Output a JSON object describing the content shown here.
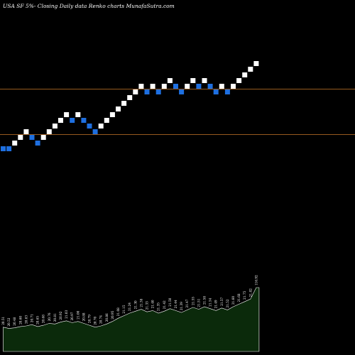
{
  "header": {
    "title": "USA SF 5%-  Closing Daily data  Renko  charts MunafaSutra.com"
  },
  "colors": {
    "background": "#000000",
    "up_brick": "#ffffff",
    "down_brick": "#1e6fe0",
    "level_line": "#c8782a",
    "volume_fill": "#0b2a0b",
    "volume_line": "#ffffff"
  },
  "chart_data": {
    "type": "renko",
    "bricks": [
      {
        "dir": "down",
        "level": 0
      },
      {
        "dir": "down",
        "level": 0
      },
      {
        "dir": "up",
        "level": 1
      },
      {
        "dir": "up",
        "level": 2
      },
      {
        "dir": "up",
        "level": 3
      },
      {
        "dir": "down",
        "level": 2
      },
      {
        "dir": "down",
        "level": 1
      },
      {
        "dir": "up",
        "level": 2
      },
      {
        "dir": "up",
        "level": 3
      },
      {
        "dir": "up",
        "level": 4
      },
      {
        "dir": "up",
        "level": 5
      },
      {
        "dir": "up",
        "level": 6
      },
      {
        "dir": "down",
        "level": 5
      },
      {
        "dir": "up",
        "level": 6
      },
      {
        "dir": "down",
        "level": 5
      },
      {
        "dir": "down",
        "level": 4
      },
      {
        "dir": "down",
        "level": 3
      },
      {
        "dir": "up",
        "level": 4
      },
      {
        "dir": "up",
        "level": 5
      },
      {
        "dir": "up",
        "level": 6
      },
      {
        "dir": "up",
        "level": 7
      },
      {
        "dir": "up",
        "level": 8
      },
      {
        "dir": "up",
        "level": 9
      },
      {
        "dir": "up",
        "level": 10
      },
      {
        "dir": "up",
        "level": 11
      },
      {
        "dir": "down",
        "level": 10
      },
      {
        "dir": "up",
        "level": 11
      },
      {
        "dir": "down",
        "level": 10
      },
      {
        "dir": "up",
        "level": 11
      },
      {
        "dir": "up",
        "level": 12
      },
      {
        "dir": "down",
        "level": 11
      },
      {
        "dir": "down",
        "level": 10
      },
      {
        "dir": "up",
        "level": 11
      },
      {
        "dir": "up",
        "level": 12
      },
      {
        "dir": "down",
        "level": 11
      },
      {
        "dir": "up",
        "level": 12
      },
      {
        "dir": "down",
        "level": 11
      },
      {
        "dir": "down",
        "level": 10
      },
      {
        "dir": "up",
        "level": 11
      },
      {
        "dir": "down",
        "level": 10
      },
      {
        "dir": "up",
        "level": 11
      },
      {
        "dir": "up",
        "level": 12
      },
      {
        "dir": "up",
        "level": 13
      },
      {
        "dir": "up",
        "level": 14
      },
      {
        "dir": "up",
        "level": 15
      }
    ],
    "volume": [
      {
        "value": 38,
        "label": "20.51"
      },
      {
        "value": 36,
        "label": "20.52"
      },
      {
        "value": 37,
        "label": "20.48"
      },
      {
        "value": 39,
        "label": "20.60"
      },
      {
        "value": 40,
        "label": "20.63"
      },
      {
        "value": 42,
        "label": "20.71"
      },
      {
        "value": 39,
        "label": "20.65"
      },
      {
        "value": 41,
        "label": "20.68"
      },
      {
        "value": 44,
        "label": "20.76"
      },
      {
        "value": 43,
        "label": "20.81"
      },
      {
        "value": 46,
        "label": "20.92"
      },
      {
        "value": 48,
        "label": "21.03"
      },
      {
        "value": 45,
        "label": "20.97"
      },
      {
        "value": 47,
        "label": "21.00"
      },
      {
        "value": 44,
        "label": "20.88"
      },
      {
        "value": 41,
        "label": "20.79"
      },
      {
        "value": 38,
        "label": "20.70"
      },
      {
        "value": 40,
        "label": "20.74"
      },
      {
        "value": 43,
        "label": "20.86"
      },
      {
        "value": 47,
        "label": "20.95"
      },
      {
        "value": 52,
        "label": "21.08"
      },
      {
        "value": 56,
        "label": "21.15"
      },
      {
        "value": 60,
        "label": "21.24"
      },
      {
        "value": 63,
        "label": "21.30"
      },
      {
        "value": 66,
        "label": "21.38"
      },
      {
        "value": 62,
        "label": "21.33"
      },
      {
        "value": 64,
        "label": "21.40"
      },
      {
        "value": 60,
        "label": "21.35"
      },
      {
        "value": 63,
        "label": "21.42"
      },
      {
        "value": 67,
        "label": "21.50"
      },
      {
        "value": 64,
        "label": "21.44"
      },
      {
        "value": 61,
        "label": "21.39"
      },
      {
        "value": 65,
        "label": "21.47"
      },
      {
        "value": 69,
        "label": "21.55"
      },
      {
        "value": 66,
        "label": "21.51"
      },
      {
        "value": 70,
        "label": "21.58"
      },
      {
        "value": 67,
        "label": "21.54"
      },
      {
        "value": 64,
        "label": "21.49"
      },
      {
        "value": 68,
        "label": "21.57"
      },
      {
        "value": 65,
        "label": "21.52"
      },
      {
        "value": 70,
        "label": "21.60"
      },
      {
        "value": 74,
        "label": "21.68"
      },
      {
        "value": 78,
        "label": "21.75"
      },
      {
        "value": 82,
        "label": "21.82"
      },
      {
        "value": 100,
        "label": "116.92"
      }
    ],
    "reference_levels": [
      10.5,
      2.5
    ],
    "grid": false
  }
}
